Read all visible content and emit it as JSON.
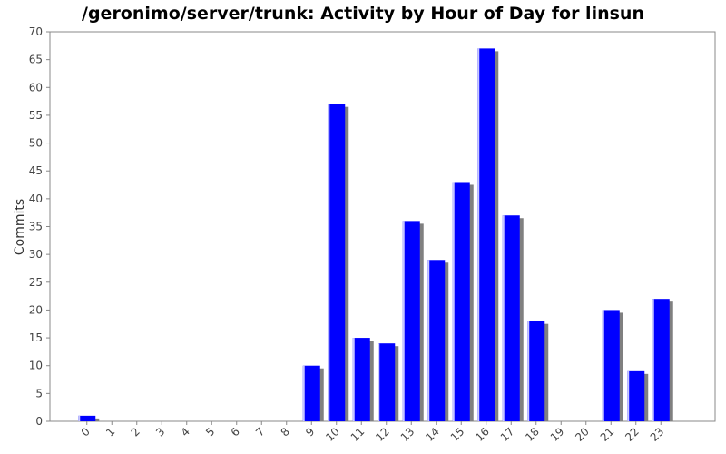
{
  "chart_data": {
    "type": "bar",
    "title": "/geronimo/server/trunk: Activity by Hour of Day for linsun",
    "xlabel": "",
    "ylabel": "Commits",
    "categories": [
      "0",
      "1",
      "2",
      "3",
      "4",
      "5",
      "6",
      "7",
      "8",
      "9",
      "10",
      "11",
      "12",
      "13",
      "14",
      "15",
      "16",
      "17",
      "18",
      "19",
      "20",
      "21",
      "22",
      "23"
    ],
    "values": [
      1,
      0,
      0,
      0,
      0,
      0,
      0,
      0,
      0,
      10,
      57,
      15,
      14,
      36,
      29,
      43,
      67,
      37,
      18,
      0,
      0,
      20,
      9,
      22
    ],
    "ylim": [
      0,
      70
    ],
    "yticks": [
      0,
      5,
      10,
      15,
      20,
      25,
      30,
      35,
      40,
      45,
      50,
      55,
      60,
      65,
      70
    ],
    "grid": false,
    "legend": "none",
    "colors": {
      "bar": "#0000ff",
      "shadow": "#808080",
      "highlight": "#c8c8ff",
      "axis": "#888888",
      "background": "#ffffff"
    }
  }
}
